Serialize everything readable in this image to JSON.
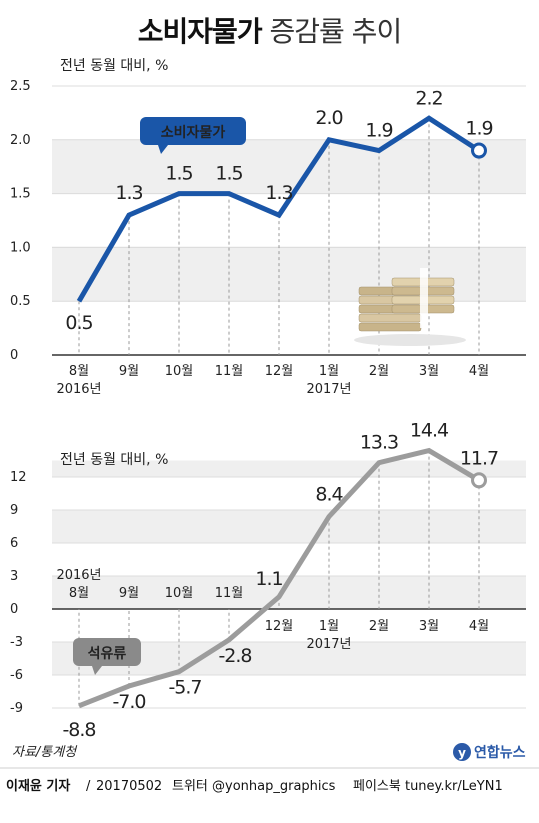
{
  "title": {
    "bold": "소비자물가",
    "light": "증감률 추이"
  },
  "source": "자료/통계청",
  "logo": "연합뉴스",
  "footer": {
    "author": "이재윤 기자",
    "sep": "/",
    "date": "20170502",
    "twitter": "트위터 @yonhap_graphics",
    "facebook": "페이스북 tuney.kr/LeYN1"
  },
  "colors": {
    "cpi_line": "#1a56a8",
    "oil_line": "#9c9c9c",
    "band": "#efefef",
    "callout_cpi": "#1a56a8",
    "callout_oil": "#8a8a8a"
  },
  "chart_data": [
    {
      "type": "line",
      "unit_label": "전년 동월 대비, %",
      "callout": "소비자물가",
      "categories": [
        "8월",
        "9월",
        "10월",
        "11월",
        "12월",
        "1월",
        "2월",
        "3월",
        "4월"
      ],
      "year_labels": [
        {
          "index": 0,
          "text": "2016년"
        },
        {
          "index": 5,
          "text": "2017년"
        }
      ],
      "yticks": [
        "0",
        "0.5",
        "1.0",
        "1.5",
        "2.0",
        "2.5"
      ],
      "ylim": [
        0,
        2.5
      ],
      "series": [
        {
          "values": [
            0.5,
            1.3,
            1.5,
            1.5,
            1.3,
            2.0,
            1.9,
            2.2,
            1.9
          ]
        }
      ],
      "data_labels": [
        "0.5",
        "1.3",
        "1.5",
        "1.5",
        "1.3",
        "2.0",
        "1.9",
        "2.2",
        "1.9"
      ],
      "icon": "money-stack-icon"
    },
    {
      "type": "line",
      "unit_label": "전년 동월 대비, %",
      "callout": "석유류",
      "categories": [
        "8월",
        "9월",
        "10월",
        "11월",
        "12월",
        "1월",
        "2월",
        "3월",
        "4월"
      ],
      "year_labels": [
        {
          "index": 0,
          "text": "2016년"
        },
        {
          "index": 5,
          "text": "2017년"
        }
      ],
      "yticks": [
        "-9",
        "-6",
        "-3",
        "0",
        "3",
        "6",
        "9",
        "12"
      ],
      "ylim": [
        -9,
        13.5
      ],
      "series": [
        {
          "values": [
            -8.8,
            -7.0,
            -5.7,
            -2.8,
            1.1,
            8.4,
            13.3,
            14.4,
            11.7
          ]
        }
      ],
      "data_labels": [
        "-8.8",
        "-7.0",
        "-5.7",
        "-2.8",
        "1.1",
        "8.4",
        "13.3",
        "14.4",
        "11.7"
      ]
    }
  ]
}
